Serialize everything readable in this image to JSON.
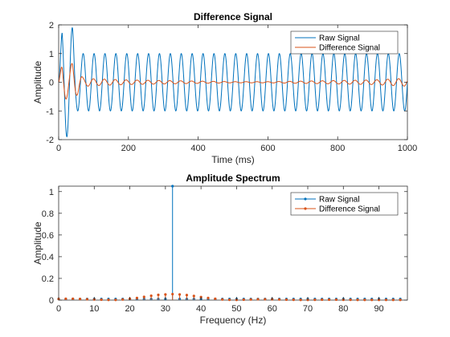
{
  "chart_data": [
    {
      "type": "line",
      "title": "Difference Signal",
      "xlabel": "Time (ms)",
      "ylabel": "Amplitude",
      "xlim": [
        0,
        1000
      ],
      "ylim": [
        -2,
        2
      ],
      "xticks": [
        0,
        200,
        400,
        600,
        800,
        1000
      ],
      "yticks": [
        -2,
        -1,
        0,
        1,
        2
      ],
      "legend_position": "top-right",
      "signal_frequency_hz": 32,
      "series": [
        {
          "name": "Raw Signal",
          "color": "#0072BD",
          "description": "1.0 amplitude sinusoid at 32 Hz, larger 50-ms transient near start",
          "amplitude": 1.0,
          "x": [
            0,
            10,
            20,
            30,
            40,
            50,
            60,
            1000
          ],
          "envelope": [
            0.0,
            1.9,
            1.9,
            1.9,
            1.9,
            1.0,
            1.0,
            1.0
          ]
        },
        {
          "name": "Difference Signal",
          "color": "#D95319",
          "description": "small residual oscillation, ~0.7 at start decaying to ~0.05",
          "x": [
            0,
            10,
            20,
            30,
            40,
            50,
            70,
            100,
            200,
            300,
            400,
            500,
            600,
            700,
            800,
            900,
            1000
          ],
          "envelope": [
            0.0,
            0.7,
            0.6,
            0.5,
            0.7,
            0.5,
            0.15,
            0.12,
            0.08,
            0.06,
            0.04,
            0.02,
            0.02,
            0.04,
            0.06,
            0.08,
            0.14
          ]
        }
      ]
    },
    {
      "type": "stem",
      "title": "Amplitude Spectrum",
      "xlabel": "Frequency (Hz)",
      "ylabel": "Amplitude",
      "xlim": [
        0,
        98
      ],
      "ylim": [
        0,
        1.05
      ],
      "xticks": [
        0,
        10,
        20,
        30,
        40,
        50,
        60,
        70,
        80,
        90
      ],
      "yticks": [
        0,
        0.2,
        0.4,
        0.6,
        0.8,
        1
      ],
      "ytick_labels": [
        "0",
        "0.2",
        "0.4",
        "0.6",
        "0.8",
        "1"
      ],
      "legend_position": "top-right",
      "series": [
        {
          "name": "Raw Signal",
          "color": "#0072BD",
          "x": [
            0,
            2,
            4,
            6,
            8,
            10,
            12,
            14,
            16,
            18,
            20,
            22,
            24,
            26,
            28,
            30,
            32,
            34,
            36,
            38,
            40,
            42,
            44,
            46,
            48,
            50,
            52,
            54,
            56,
            58,
            60,
            62,
            64,
            66,
            68,
            70,
            72,
            74,
            76,
            78,
            80,
            82,
            84,
            86,
            88,
            90,
            92,
            94,
            96
          ],
          "values": [
            0.01,
            0.01,
            0.01,
            0.01,
            0.01,
            0.01,
            0.01,
            0.01,
            0.01,
            0.01,
            0.01,
            0.01,
            0.01,
            0.01,
            0.01,
            0.01,
            1.05,
            0.01,
            0.01,
            0.01,
            0.01,
            0.01,
            0.01,
            0.01,
            0.01,
            0.01,
            0.01,
            0.01,
            0.01,
            0.01,
            0.01,
            0.01,
            0.01,
            0.01,
            0.01,
            0.01,
            0.01,
            0.01,
            0.01,
            0.01,
            0.01,
            0.01,
            0.01,
            0.01,
            0.01,
            0.01,
            0.01,
            0.01,
            0.01
          ]
        },
        {
          "name": "Difference Signal",
          "color": "#D95319",
          "x": [
            0,
            2,
            4,
            6,
            8,
            10,
            12,
            14,
            16,
            18,
            20,
            22,
            24,
            26,
            28,
            30,
            32,
            34,
            36,
            38,
            40,
            42,
            44,
            46,
            48,
            50,
            52,
            54,
            56,
            58,
            60,
            62,
            64,
            66,
            68,
            70,
            72,
            74,
            76,
            78,
            80,
            82,
            84,
            86,
            88,
            90,
            92,
            94,
            96
          ],
          "values": [
            0.01,
            0.012,
            0.012,
            0.01,
            0.008,
            0.006,
            0.004,
            0.002,
            0.002,
            0.006,
            0.012,
            0.02,
            0.03,
            0.04,
            0.048,
            0.052,
            0.055,
            0.052,
            0.046,
            0.038,
            0.028,
            0.02,
            0.012,
            0.006,
            0.003,
            0.002,
            0.004,
            0.006,
            0.008,
            0.008,
            0.007,
            0.006,
            0.004,
            0.003,
            0.002,
            0.002,
            0.003,
            0.004,
            0.004,
            0.004,
            0.003,
            0.003,
            0.002,
            0.002,
            0.002,
            0.002,
            0.002,
            0.002,
            0.002
          ]
        }
      ]
    }
  ]
}
